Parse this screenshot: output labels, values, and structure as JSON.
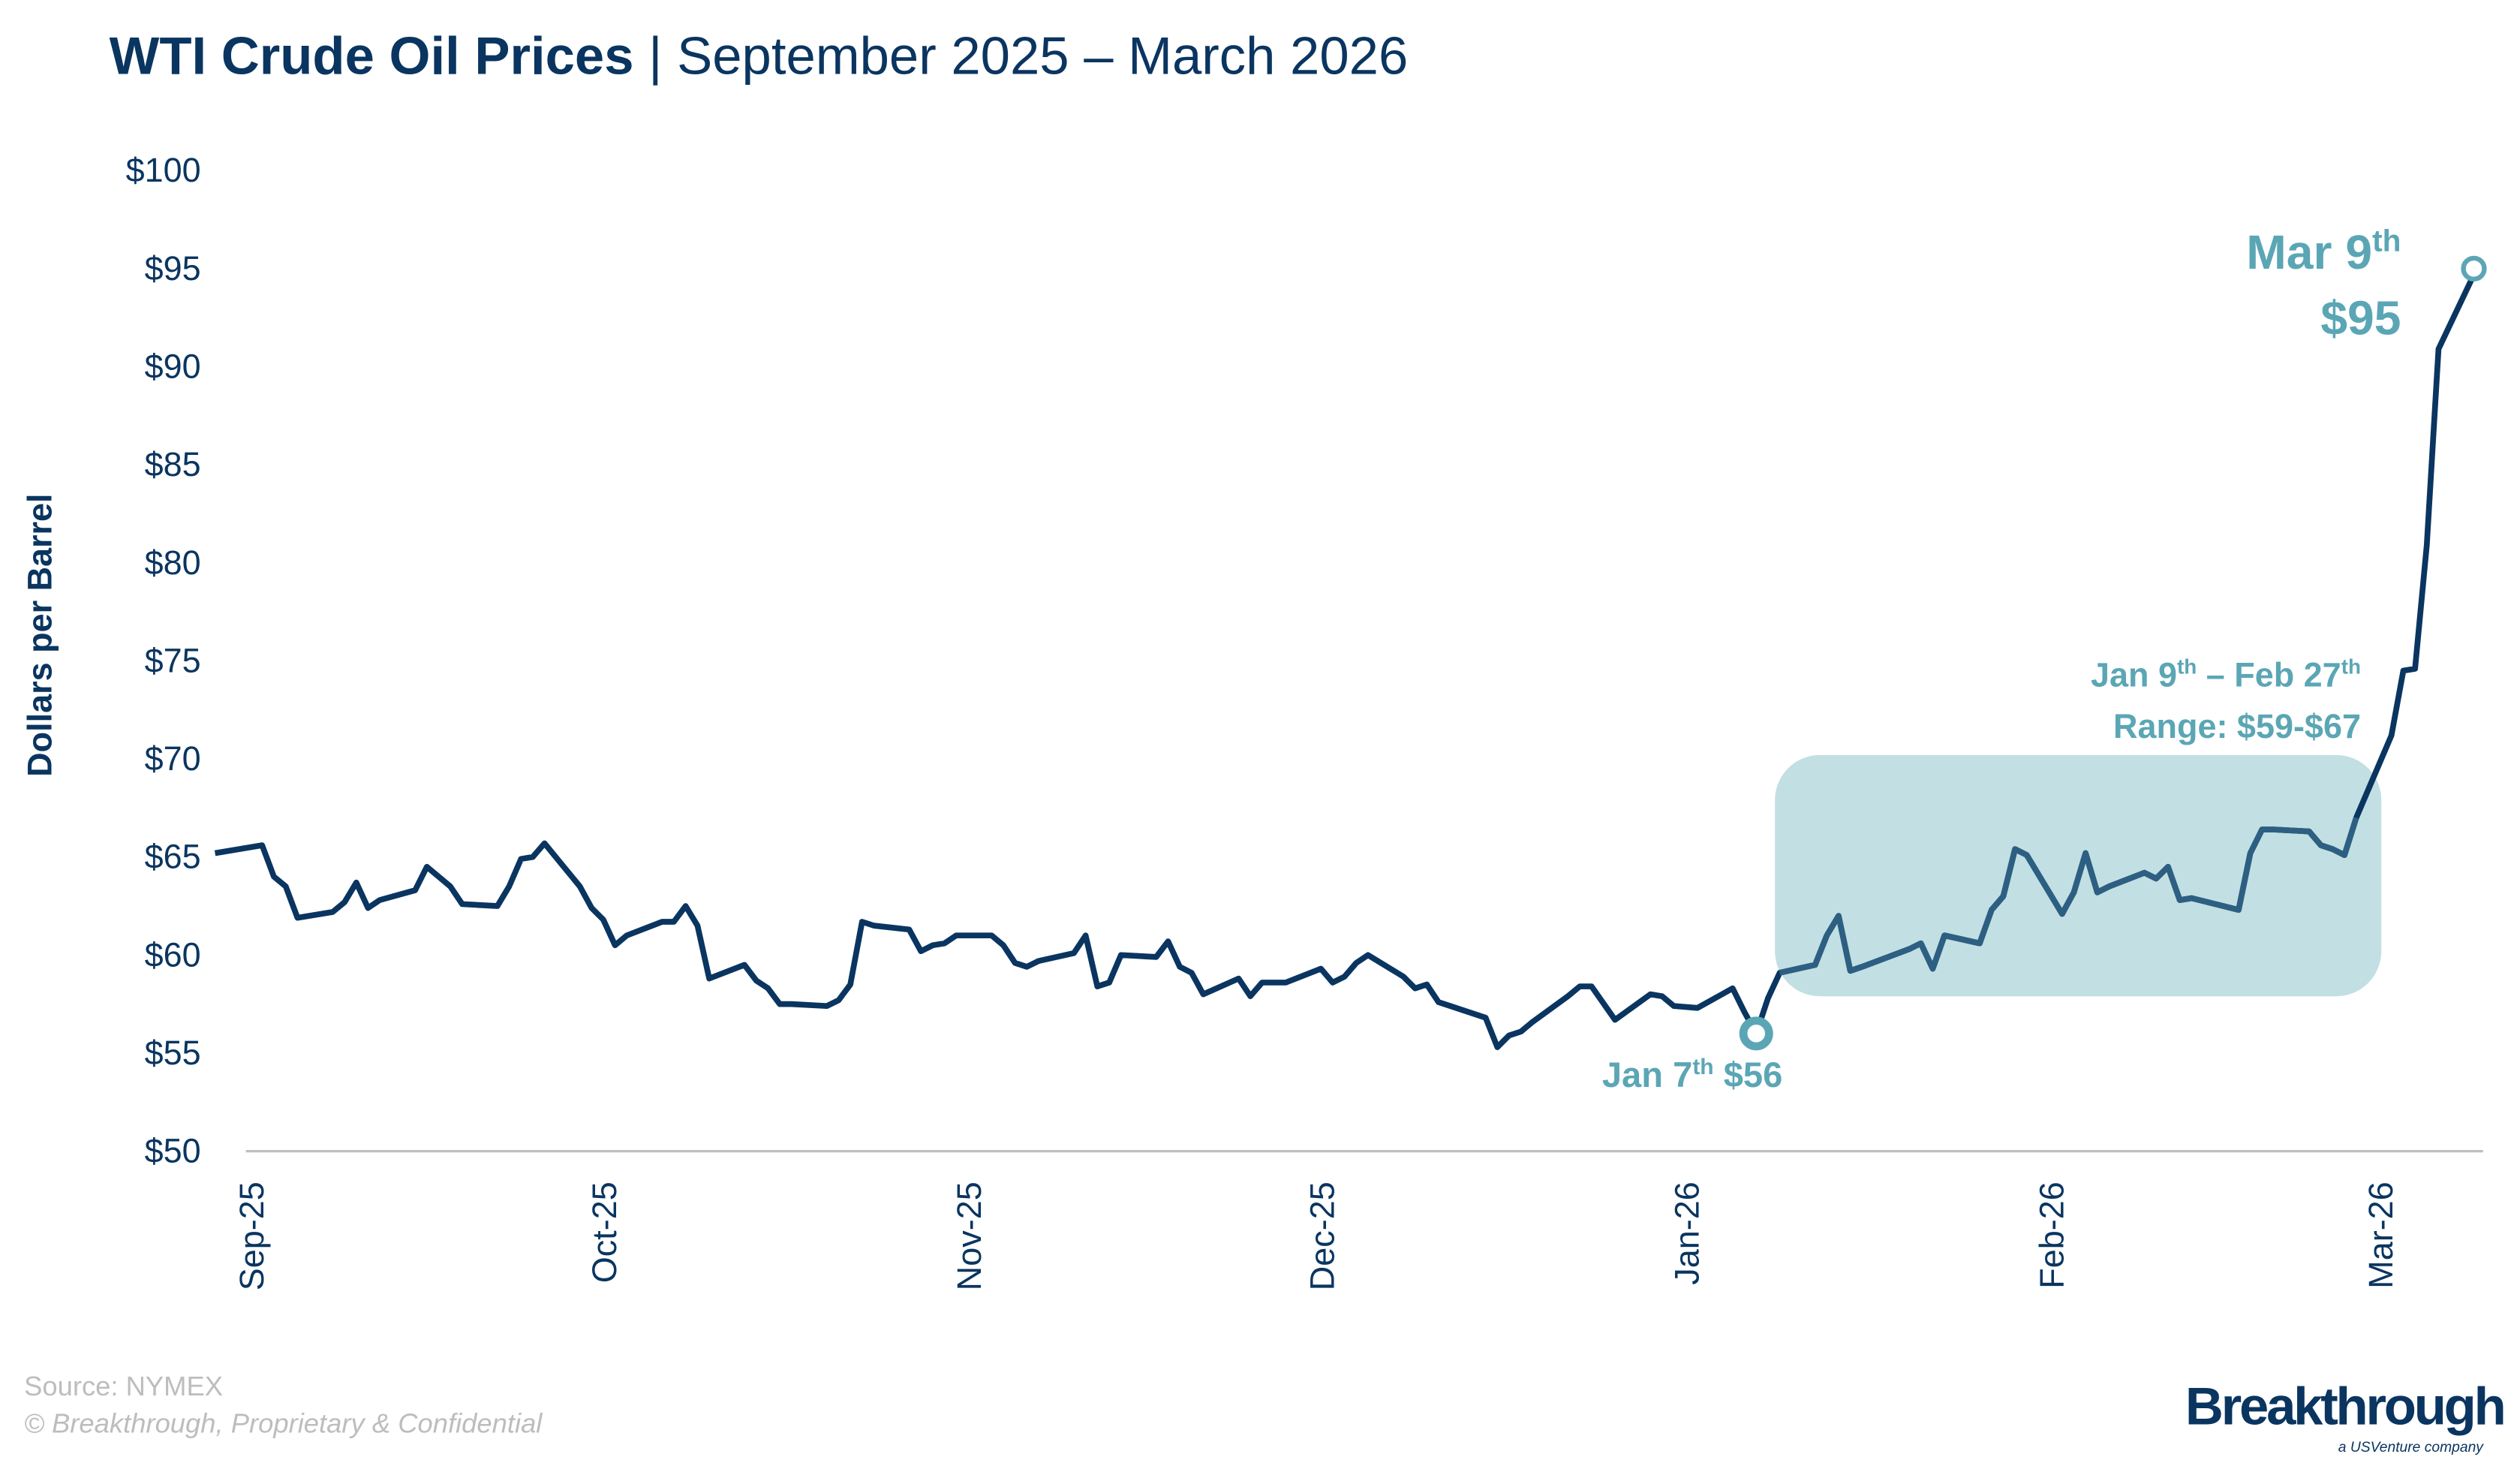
{
  "title": {
    "bold": "WTI Crude Oil Prices",
    "separator": " | ",
    "rest": "September 2025 – March 2026"
  },
  "colors": {
    "line": "#0a3560",
    "accent": "#5ba6b5",
    "range_box": "#c2dfe3",
    "footer_text": "#bdbdbd",
    "axis": "#bfbfbf"
  },
  "chart_data": {
    "type": "line",
    "title": "WTI Crude Oil Prices | September 2025 – March 2026",
    "xlabel": "",
    "ylabel": "Dollars per Barrel",
    "ylim": [
      50,
      100
    ],
    "yticks": [
      50,
      55,
      60,
      65,
      70,
      75,
      80,
      85,
      90,
      95,
      100
    ],
    "ytick_labels": [
      "$50",
      "$55",
      "$60",
      "$65",
      "$70",
      "$75",
      "$80",
      "$85",
      "$90",
      "$95",
      "$100"
    ],
    "xticks": [
      "2025-09-01",
      "2025-10-01",
      "2025-11-01",
      "2025-12-01",
      "2026-01-01",
      "2026-02-01",
      "2026-03-01"
    ],
    "xtick_labels": [
      "Sep-25",
      "Oct-25",
      "Nov-25",
      "Dec-25",
      "Jan-26",
      "Feb-26",
      "Mar-26"
    ],
    "grid": false,
    "legend": "none",
    "series": [
      {
        "x": [
          "2025-08-29",
          "2025-09-02",
          "2025-09-03",
          "2025-09-04",
          "2025-09-05",
          "2025-09-08",
          "2025-09-09",
          "2025-09-10",
          "2025-09-11",
          "2025-09-12",
          "2025-09-15",
          "2025-09-16",
          "2025-09-17",
          "2025-09-18",
          "2025-09-19",
          "2025-09-22",
          "2025-09-23",
          "2025-09-24",
          "2025-09-25",
          "2025-09-26",
          "2025-09-29",
          "2025-09-30",
          "2025-10-01",
          "2025-10-02",
          "2025-10-03",
          "2025-10-06",
          "2025-10-07",
          "2025-10-08",
          "2025-10-09",
          "2025-10-10",
          "2025-10-13",
          "2025-10-14",
          "2025-10-15",
          "2025-10-16",
          "2025-10-17",
          "2025-10-20",
          "2025-10-21",
          "2025-10-22",
          "2025-10-23",
          "2025-10-24",
          "2025-10-27",
          "2025-10-28",
          "2025-10-29",
          "2025-10-30",
          "2025-10-31",
          "2025-11-03",
          "2025-11-04",
          "2025-11-05",
          "2025-11-06",
          "2025-11-07",
          "2025-11-10",
          "2025-11-11",
          "2025-11-12",
          "2025-11-13",
          "2025-11-14",
          "2025-11-17",
          "2025-11-18",
          "2025-11-19",
          "2025-11-20",
          "2025-11-21",
          "2025-11-24",
          "2025-11-25",
          "2025-11-26",
          "2025-11-28",
          "2025-12-01",
          "2025-12-02",
          "2025-12-03",
          "2025-12-04",
          "2025-12-05",
          "2025-12-08",
          "2025-12-09",
          "2025-12-10",
          "2025-12-11",
          "2025-12-12",
          "2025-12-15",
          "2025-12-16",
          "2025-12-17",
          "2025-12-18",
          "2025-12-19",
          "2025-12-22",
          "2025-12-23",
          "2025-12-24",
          "2025-12-26",
          "2025-12-29",
          "2025-12-30",
          "2025-12-31",
          "2026-01-02",
          "2026-01-05",
          "2026-01-06",
          "2026-01-07",
          "2026-01-08",
          "2026-01-09",
          "2026-01-12",
          "2026-01-13",
          "2026-01-14",
          "2026-01-15",
          "2026-01-16",
          "2026-01-20",
          "2026-01-21",
          "2026-01-22",
          "2026-01-23",
          "2026-01-26",
          "2026-01-27",
          "2026-01-28",
          "2026-01-29",
          "2026-01-30",
          "2026-02-02",
          "2026-02-03",
          "2026-02-04",
          "2026-02-05",
          "2026-02-06",
          "2026-02-09",
          "2026-02-10",
          "2026-02-11",
          "2026-02-12",
          "2026-02-13",
          "2026-02-17",
          "2026-02-18",
          "2026-02-19",
          "2026-02-20",
          "2026-02-23",
          "2026-02-24",
          "2026-02-25",
          "2026-02-26",
          "2026-02-27",
          "2026-03-02",
          "2026-03-03",
          "2026-03-04",
          "2026-03-05",
          "2026-03-06",
          "2026-03-09"
        ],
        "y": [
          65.2,
          65.6,
          64.0,
          63.5,
          61.9,
          62.2,
          62.7,
          63.7,
          62.4,
          62.8,
          63.3,
          64.5,
          64.0,
          63.5,
          62.6,
          62.5,
          63.5,
          64.9,
          65.0,
          65.7,
          63.5,
          62.4,
          61.8,
          60.5,
          61.0,
          61.7,
          61.7,
          62.5,
          61.5,
          58.8,
          59.5,
          58.7,
          58.3,
          57.5,
          57.5,
          57.4,
          57.7,
          58.5,
          61.7,
          61.5,
          61.3,
          60.2,
          60.5,
          60.6,
          61.0,
          61.0,
          60.5,
          59.6,
          59.4,
          59.7,
          60.1,
          61.0,
          58.4,
          58.6,
          60.0,
          59.9,
          60.7,
          59.4,
          59.1,
          58.0,
          58.8,
          57.9,
          58.6,
          58.6,
          59.3,
          58.6,
          58.9,
          59.6,
          60.0,
          58.9,
          58.3,
          58.5,
          57.6,
          57.4,
          56.8,
          55.3,
          55.9,
          56.1,
          56.6,
          57.9,
          58.4,
          58.4,
          56.7,
          58.0,
          57.9,
          57.4,
          57.3,
          58.3,
          57.1,
          56.0,
          57.8,
          59.1,
          59.5,
          61.0,
          62.0,
          59.2,
          59.4,
          60.3,
          60.6,
          59.3,
          61.0,
          60.6,
          62.3,
          63.0,
          65.4,
          65.1,
          62.1,
          63.2,
          65.2,
          63.2,
          63.5,
          64.2,
          63.9,
          64.5,
          62.8,
          62.9,
          62.3,
          65.2,
          66.4,
          66.4,
          66.3,
          65.6,
          65.4,
          65.1,
          67.0,
          71.2,
          74.5,
          74.6,
          80.9,
          90.9,
          94.7
        ]
      }
    ],
    "annotations": {
      "low": {
        "date": "2026-01-07",
        "value": 56,
        "label_main": "Jan 7",
        "label_sup": "th",
        "label_value": " $56"
      },
      "high": {
        "date": "2026-03-09",
        "value": 95,
        "label_main": "Mar 9",
        "label_sup": "th",
        "label_value": "$95"
      },
      "range": {
        "from": "2026-01-09",
        "to": "2026-02-27",
        "line1_a": "Jan 9",
        "line1_a_sup": "th",
        "line1_b": " – Feb 27",
        "line1_b_sup": "th",
        "line2": "Range: $59-$67",
        "low": 59,
        "high": 67
      }
    }
  },
  "footer": {
    "source": "Source: NYMEX",
    "copyright": "© Breakthrough, Proprietary & Confidential"
  },
  "logo": {
    "name": "Breakthrough",
    "tagline": "a USVenture company"
  }
}
